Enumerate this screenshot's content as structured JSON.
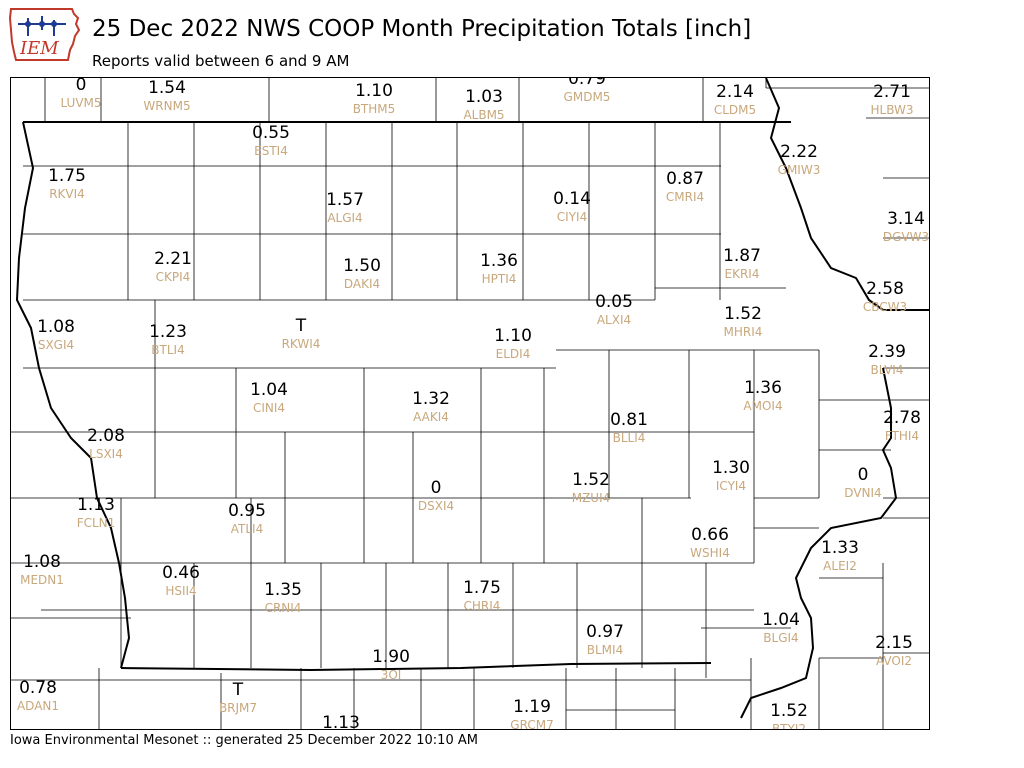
{
  "header": {
    "title": "25 Dec 2022 NWS COOP Month Precipitation Totals [inch]",
    "subtitle": "Reports valid between 6 and 9 AM"
  },
  "logo": {
    "text": "IEM",
    "icon": "iem-iowa-logo"
  },
  "footer": {
    "text": "Iowa Environmental Mesonet :: generated 25 December 2022 10:10 AM"
  },
  "colors": {
    "value_text": "#000000",
    "station_text": "#c8a87c",
    "county_lines": "#000000"
  },
  "stations": [
    {
      "id": "LUVM5",
      "value": "0"
    },
    {
      "id": "WRNM5",
      "value": "1.54"
    },
    {
      "id": "BTHM5",
      "value": "1.10"
    },
    {
      "id": "ALBM5",
      "value": "1.03"
    },
    {
      "id": "GMDM5",
      "value": "0.79"
    },
    {
      "id": "CLDM5",
      "value": "2.14"
    },
    {
      "id": "HLBW3",
      "value": "2.71"
    },
    {
      "id": "ESTI4",
      "value": "0.55"
    },
    {
      "id": "RKVI4",
      "value": "1.75"
    },
    {
      "id": "ALGI4",
      "value": "1.57"
    },
    {
      "id": "CIYI4",
      "value": "0.14"
    },
    {
      "id": "CMRI4",
      "value": "0.87"
    },
    {
      "id": "GMIW3",
      "value": "2.22"
    },
    {
      "id": "DGVW3",
      "value": "3.14"
    },
    {
      "id": "CKPI4",
      "value": "2.21"
    },
    {
      "id": "DAKI4",
      "value": "1.50"
    },
    {
      "id": "HPTI4",
      "value": "1.36"
    },
    {
      "id": "EKRI4",
      "value": "1.87"
    },
    {
      "id": "CBCW3",
      "value": "2.58"
    },
    {
      "id": "SXGI4",
      "value": "1.08"
    },
    {
      "id": "BTLI4",
      "value": "1.23"
    },
    {
      "id": "RKWI4",
      "value": "T"
    },
    {
      "id": "ALXI4",
      "value": "0.05"
    },
    {
      "id": "ELDI4",
      "value": "1.10"
    },
    {
      "id": "MHRI4",
      "value": "1.52"
    },
    {
      "id": "BLVI4",
      "value": "2.39"
    },
    {
      "id": "CINI4",
      "value": "1.04"
    },
    {
      "id": "AAKI4",
      "value": "1.32"
    },
    {
      "id": "AMOI4",
      "value": "1.36"
    },
    {
      "id": "LSXI4",
      "value": "2.08"
    },
    {
      "id": "BLLI4",
      "value": "0.81"
    },
    {
      "id": "FTHI4",
      "value": "2.78"
    },
    {
      "id": "ICYI4",
      "value": "1.30"
    },
    {
      "id": "DVNI4",
      "value": "0"
    },
    {
      "id": "FCLN1",
      "value": "1.13"
    },
    {
      "id": "ATLI4",
      "value": "0.95"
    },
    {
      "id": "DSXI4",
      "value": "0"
    },
    {
      "id": "MZUI4",
      "value": "1.52"
    },
    {
      "id": "WSHI4",
      "value": "0.66"
    },
    {
      "id": "ALEI2",
      "value": "1.33"
    },
    {
      "id": "MEDN1",
      "value": "1.08"
    },
    {
      "id": "HSII4",
      "value": "0.46"
    },
    {
      "id": "CRNI4",
      "value": "1.35"
    },
    {
      "id": "CHRI4",
      "value": "1.75"
    },
    {
      "id": "BLMI4",
      "value": "0.97"
    },
    {
      "id": "BLGI4",
      "value": "1.04"
    },
    {
      "id": "AVOI2",
      "value": "2.15"
    },
    {
      "id": "3OI",
      "value": "1.90"
    },
    {
      "id": "ADAN1",
      "value": "0.78"
    },
    {
      "id": "BRJM7",
      "value": "T"
    },
    {
      "id": "GRCM7",
      "value": "1.19"
    },
    {
      "id": "BTYI2",
      "value": "1.52"
    },
    {
      "id": "",
      "value": "1.13"
    }
  ]
}
